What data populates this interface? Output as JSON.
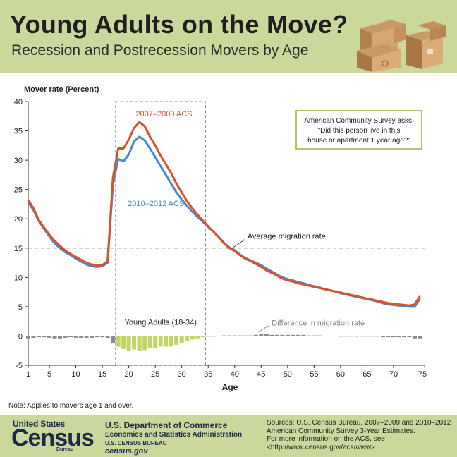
{
  "header": {
    "title": "Young Adults on the Move?",
    "subtitle": "Recession and Postrecession Movers by Age"
  },
  "note": "Note: Applies to movers age 1 and over.",
  "callout": {
    "line1": "American Community Survey asks:",
    "line2": "\"Did this person live in this",
    "line3": "house or apartment 1 year ago?\""
  },
  "footer": {
    "logo_top": "United States",
    "logo_main": "Census",
    "logo_bottom": "Bureau",
    "dept_line1": "U.S. Department of Commerce",
    "dept_line2": "Economics and Statistics Administration",
    "dept_line3": "U.S. CENSUS BUREAU",
    "dept_line4": "census.gov",
    "sources_line1": "Sources:  U.S. Census Bureau, 2007–2009 and 2010–2012",
    "sources_line2": "American Community Survey 3-Year Estimates.",
    "sources_line3": "For more information on the ACS, see",
    "sources_line4": "<http://www.census.gov/acs/www>"
  },
  "colors": {
    "series_2007": "#d9522a",
    "series_2010": "#4a88c8",
    "diff_young": "#c5d468",
    "diff_other": "#8a8a8a",
    "band": "#cbd89b"
  },
  "chart_data": {
    "type": "line",
    "ylabel": "Mover rate (Percent)",
    "xlabel": "Age",
    "ylim": [
      -5,
      40
    ],
    "yticks": [
      -5,
      0,
      5,
      10,
      15,
      20,
      25,
      30,
      35,
      40
    ],
    "xticks": [
      1,
      5,
      10,
      15,
      20,
      25,
      30,
      35,
      40,
      45,
      50,
      55,
      60,
      65,
      70,
      75
    ],
    "xtick_labels": [
      "1",
      "5",
      "10",
      "15",
      "20",
      "25",
      "30",
      "35",
      "40",
      "45",
      "50",
      "55",
      "60",
      "65",
      "70",
      "75+"
    ],
    "x": [
      1,
      2,
      3,
      4,
      5,
      6,
      7,
      8,
      9,
      10,
      11,
      12,
      13,
      14,
      15,
      16,
      17,
      18,
      19,
      20,
      21,
      22,
      23,
      24,
      25,
      26,
      27,
      28,
      29,
      30,
      31,
      32,
      33,
      34,
      35,
      36,
      37,
      38,
      39,
      40,
      41,
      42,
      43,
      44,
      45,
      46,
      47,
      48,
      49,
      50,
      51,
      52,
      53,
      54,
      55,
      56,
      57,
      58,
      59,
      60,
      61,
      62,
      63,
      64,
      65,
      66,
      67,
      68,
      69,
      70,
      71,
      72,
      73,
      74,
      75
    ],
    "series": [
      {
        "name": "2007–2009 ACS",
        "values": [
          23.2,
          21.8,
          19.8,
          18.5,
          17.3,
          16.2,
          15.4,
          14.6,
          14.0,
          13.5,
          13.0,
          12.5,
          12.2,
          12.0,
          12.1,
          12.8,
          27.0,
          32.0,
          32.0,
          33.5,
          35.5,
          36.5,
          35.8,
          34.0,
          32.5,
          30.8,
          29.3,
          27.8,
          26.0,
          24.5,
          23.0,
          21.8,
          20.7,
          19.7,
          18.7,
          17.8,
          16.8,
          15.8,
          15.0,
          14.5,
          13.8,
          13.2,
          12.8,
          12.3,
          11.8,
          11.2,
          10.8,
          10.3,
          9.8,
          9.5,
          9.3,
          9.0,
          8.8,
          8.6,
          8.4,
          8.2,
          8.0,
          7.8,
          7.6,
          7.4,
          7.2,
          7.0,
          6.8,
          6.6,
          6.4,
          6.2,
          6.0,
          5.8,
          5.6,
          5.5,
          5.4,
          5.3,
          5.2,
          5.4,
          6.8
        ]
      },
      {
        "name": "2010–2012 ACS",
        "values": [
          22.8,
          21.5,
          19.6,
          18.3,
          17.0,
          15.8,
          15.0,
          14.3,
          13.8,
          13.2,
          12.7,
          12.2,
          11.9,
          11.8,
          11.9,
          12.5,
          25.8,
          30.2,
          29.8,
          31.0,
          33.2,
          34.0,
          33.4,
          32.0,
          30.5,
          29.0,
          27.5,
          26.0,
          24.5,
          23.3,
          22.2,
          21.2,
          20.3,
          19.5,
          18.6,
          17.8,
          16.9,
          15.9,
          15.1,
          14.6,
          13.9,
          13.3,
          12.9,
          12.5,
          12.1,
          11.5,
          11.0,
          10.5,
          10.0,
          9.7,
          9.5,
          9.2,
          9.0,
          8.7,
          8.5,
          8.3,
          8.0,
          7.8,
          7.6,
          7.3,
          7.1,
          6.9,
          6.7,
          6.5,
          6.3,
          6.1,
          5.9,
          5.6,
          5.4,
          5.3,
          5.2,
          5.1,
          5.0,
          5.0,
          6.4
        ]
      },
      {
        "name": "Difference in migration rate",
        "values": [
          -0.4,
          -0.3,
          -0.2,
          -0.2,
          -0.3,
          -0.4,
          -0.4,
          -0.3,
          -0.2,
          -0.3,
          -0.3,
          -0.3,
          -0.3,
          -0.2,
          -0.2,
          -0.3,
          -1.2,
          -1.8,
          -2.2,
          -2.5,
          -2.3,
          -2.5,
          -2.4,
          -2.0,
          -2.0,
          -1.8,
          -1.8,
          -1.8,
          -1.5,
          -1.2,
          -0.8,
          -0.6,
          -0.4,
          -0.2,
          -0.1,
          -0.1,
          0.0,
          0.1,
          0.1,
          0.1,
          0.1,
          0.1,
          0.1,
          0.2,
          0.3,
          0.3,
          0.2,
          0.2,
          0.2,
          0.2,
          0.2,
          0.2,
          0.2,
          0.1,
          0.1,
          0.1,
          0.0,
          0.0,
          0.0,
          -0.1,
          -0.1,
          -0.1,
          -0.1,
          -0.1,
          -0.1,
          -0.1,
          -0.1,
          -0.2,
          -0.2,
          -0.2,
          -0.2,
          -0.2,
          -0.2,
          -0.4,
          -0.4
        ]
      }
    ],
    "reference_line": {
      "label": "Average migration rate",
      "y": 15
    },
    "young_adult_range": {
      "label": "Young Adults (18-34)",
      "from": 18,
      "to": 34
    },
    "annotations": [
      "2007–2009 ACS",
      "2010–2012 ACS",
      "Difference in migration rate",
      "Average migration rate",
      "Young Adults (18-34)"
    ]
  }
}
